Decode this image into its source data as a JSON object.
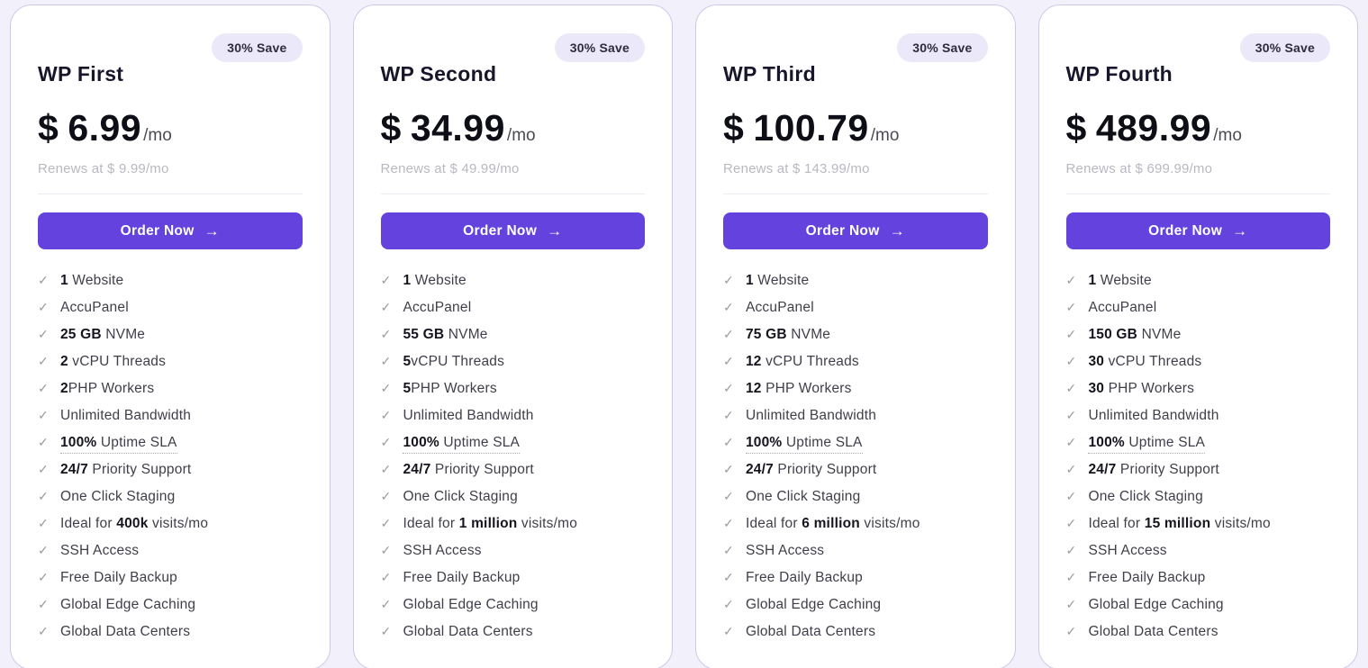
{
  "badge_label": "30% Save",
  "check_icon": "✓",
  "button": {
    "label": "Order Now",
    "arrow": "→"
  },
  "colors": {
    "accent": "#6342de",
    "page_bg": "#f2f1fb",
    "card_bg": "#ffffff",
    "card_border": "#cdc8e9",
    "badge_bg": "#ebe8f9",
    "muted_text": "#b9b8c2"
  },
  "cards": [
    {
      "name": "WP First",
      "currency": "$",
      "price": "6.99",
      "period": "/mo",
      "renews": "Renews at $ 9.99/mo",
      "features": [
        {
          "parts": [
            [
              "1",
              true
            ],
            [
              " Website",
              false
            ]
          ]
        },
        {
          "parts": [
            [
              "AccuPanel",
              false
            ]
          ]
        },
        {
          "parts": [
            [
              "25 GB",
              true
            ],
            [
              " NVMe",
              false
            ]
          ]
        },
        {
          "parts": [
            [
              "2",
              true
            ],
            [
              " vCPU Threads",
              false
            ]
          ]
        },
        {
          "parts": [
            [
              "2",
              true
            ],
            [
              "PHP Workers",
              false
            ]
          ]
        },
        {
          "parts": [
            [
              "Unlimited Bandwidth",
              false
            ]
          ]
        },
        {
          "parts": [
            [
              "100%",
              true
            ],
            [
              " Uptime SLA",
              false
            ]
          ],
          "underline": true
        },
        {
          "parts": [
            [
              "24/7",
              true
            ],
            [
              " Priority Support",
              false
            ]
          ]
        },
        {
          "parts": [
            [
              "One Click Staging",
              false
            ]
          ]
        },
        {
          "parts": [
            [
              "Ideal for ",
              false
            ],
            [
              "400k",
              true
            ],
            [
              " visits/mo",
              false
            ]
          ]
        },
        {
          "parts": [
            [
              "SSH Access",
              false
            ]
          ]
        },
        {
          "parts": [
            [
              "Free Daily Backup",
              false
            ]
          ]
        },
        {
          "parts": [
            [
              "Global Edge Caching",
              false
            ]
          ]
        },
        {
          "parts": [
            [
              "Global Data Centers",
              false
            ]
          ]
        }
      ]
    },
    {
      "name": "WP Second",
      "currency": "$",
      "price": "34.99",
      "period": "/mo",
      "renews": "Renews at $ 49.99/mo",
      "features": [
        {
          "parts": [
            [
              "1",
              true
            ],
            [
              " Website",
              false
            ]
          ]
        },
        {
          "parts": [
            [
              "AccuPanel",
              false
            ]
          ]
        },
        {
          "parts": [
            [
              "55 GB",
              true
            ],
            [
              " NVMe",
              false
            ]
          ]
        },
        {
          "parts": [
            [
              "5",
              true
            ],
            [
              "vCPU Threads",
              false
            ]
          ]
        },
        {
          "parts": [
            [
              "5",
              true
            ],
            [
              "PHP Workers",
              false
            ]
          ]
        },
        {
          "parts": [
            [
              "Unlimited Bandwidth",
              false
            ]
          ]
        },
        {
          "parts": [
            [
              "100%",
              true
            ],
            [
              " Uptime SLA",
              false
            ]
          ],
          "underline": true
        },
        {
          "parts": [
            [
              "24/7",
              true
            ],
            [
              " Priority Support",
              false
            ]
          ]
        },
        {
          "parts": [
            [
              "One Click Staging",
              false
            ]
          ]
        },
        {
          "parts": [
            [
              "Ideal for ",
              false
            ],
            [
              "1 million",
              true
            ],
            [
              " visits/mo",
              false
            ]
          ]
        },
        {
          "parts": [
            [
              "SSH Access",
              false
            ]
          ]
        },
        {
          "parts": [
            [
              "Free Daily Backup",
              false
            ]
          ]
        },
        {
          "parts": [
            [
              "Global Edge Caching",
              false
            ]
          ]
        },
        {
          "parts": [
            [
              "Global Data Centers",
              false
            ]
          ]
        }
      ]
    },
    {
      "name": "WP Third",
      "currency": "$",
      "price": "100.79",
      "period": "/mo",
      "renews": "Renews at $ 143.99/mo",
      "features": [
        {
          "parts": [
            [
              "1",
              true
            ],
            [
              " Website",
              false
            ]
          ]
        },
        {
          "parts": [
            [
              "AccuPanel",
              false
            ]
          ]
        },
        {
          "parts": [
            [
              "75 GB",
              true
            ],
            [
              " NVMe",
              false
            ]
          ]
        },
        {
          "parts": [
            [
              "12",
              true
            ],
            [
              " vCPU Threads",
              false
            ]
          ]
        },
        {
          "parts": [
            [
              "12",
              true
            ],
            [
              " PHP Workers",
              false
            ]
          ]
        },
        {
          "parts": [
            [
              "Unlimited Bandwidth",
              false
            ]
          ]
        },
        {
          "parts": [
            [
              "100%",
              true
            ],
            [
              " Uptime SLA",
              false
            ]
          ],
          "underline": true
        },
        {
          "parts": [
            [
              "24/7",
              true
            ],
            [
              " Priority Support",
              false
            ]
          ]
        },
        {
          "parts": [
            [
              "One Click Staging",
              false
            ]
          ]
        },
        {
          "parts": [
            [
              "Ideal for ",
              false
            ],
            [
              "6 million",
              true
            ],
            [
              " visits/mo",
              false
            ]
          ]
        },
        {
          "parts": [
            [
              "SSH Access",
              false
            ]
          ]
        },
        {
          "parts": [
            [
              "Free Daily Backup",
              false
            ]
          ]
        },
        {
          "parts": [
            [
              "Global Edge Caching",
              false
            ]
          ]
        },
        {
          "parts": [
            [
              "Global Data Centers",
              false
            ]
          ]
        }
      ]
    },
    {
      "name": "WP Fourth",
      "currency": "$",
      "price": "489.99",
      "period": "/mo",
      "renews": "Renews at $ 699.99/mo",
      "features": [
        {
          "parts": [
            [
              "1",
              true
            ],
            [
              " Website",
              false
            ]
          ]
        },
        {
          "parts": [
            [
              "AccuPanel",
              false
            ]
          ]
        },
        {
          "parts": [
            [
              "150 GB",
              true
            ],
            [
              " NVMe",
              false
            ]
          ]
        },
        {
          "parts": [
            [
              "30",
              true
            ],
            [
              " vCPU Threads",
              false
            ]
          ]
        },
        {
          "parts": [
            [
              "30",
              true
            ],
            [
              " PHP Workers",
              false
            ]
          ]
        },
        {
          "parts": [
            [
              "Unlimited Bandwidth",
              false
            ]
          ]
        },
        {
          "parts": [
            [
              "100%",
              true
            ],
            [
              " Uptime SLA",
              false
            ]
          ],
          "underline": true
        },
        {
          "parts": [
            [
              "24/7",
              true
            ],
            [
              " Priority Support",
              false
            ]
          ]
        },
        {
          "parts": [
            [
              "One Click Staging",
              false
            ]
          ]
        },
        {
          "parts": [
            [
              "Ideal for ",
              false
            ],
            [
              "15 million",
              true
            ],
            [
              " visits/mo",
              false
            ]
          ]
        },
        {
          "parts": [
            [
              "SSH Access",
              false
            ]
          ]
        },
        {
          "parts": [
            [
              "Free Daily Backup",
              false
            ]
          ]
        },
        {
          "parts": [
            [
              "Global Edge Caching",
              false
            ]
          ]
        },
        {
          "parts": [
            [
              "Global Data Centers",
              false
            ]
          ]
        }
      ]
    }
  ]
}
